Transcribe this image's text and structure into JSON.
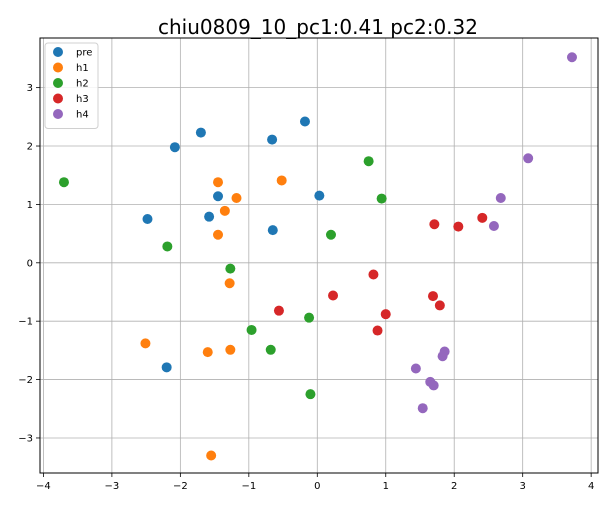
{
  "chart_data": {
    "type": "scatter",
    "title": "chiu0809_10_pc1:0.41 pc2:0.32",
    "xlabel": "",
    "ylabel": "",
    "xlim": [
      -4.05,
      4.1
    ],
    "ylim": [
      -3.6,
      3.85
    ],
    "x_ticks": [
      -4,
      -3,
      -2,
      -1,
      0,
      1,
      2,
      3,
      4
    ],
    "y_ticks": [
      -3,
      -2,
      -1,
      0,
      1,
      2,
      3
    ],
    "x_tick_labels": [
      "−4",
      "−3",
      "−2",
      "−1",
      "0",
      "1",
      "2",
      "3",
      "4"
    ],
    "y_tick_labels": [
      "−3",
      "−2",
      "−1",
      "0",
      "1",
      "2",
      "3"
    ],
    "grid": true,
    "legend_position": "upper-left",
    "series": [
      {
        "name": "pre",
        "color": "#1f77b4",
        "points": [
          [
            -2.48,
            0.75
          ],
          [
            -2.08,
            1.98
          ],
          [
            -1.7,
            2.23
          ],
          [
            -1.58,
            0.79
          ],
          [
            -1.45,
            1.14
          ],
          [
            -2.2,
            -1.79
          ],
          [
            -0.66,
            2.11
          ],
          [
            -0.65,
            0.56
          ],
          [
            -0.18,
            2.42
          ],
          [
            0.03,
            1.15
          ]
        ]
      },
      {
        "name": "h1",
        "color": "#ff7f0e",
        "points": [
          [
            -1.45,
            1.38
          ],
          [
            -1.35,
            0.89
          ],
          [
            -1.18,
            1.11
          ],
          [
            -1.45,
            0.48
          ],
          [
            -1.28,
            -0.35
          ],
          [
            -0.52,
            1.41
          ],
          [
            -2.51,
            -1.38
          ],
          [
            -1.6,
            -1.53
          ],
          [
            -1.27,
            -1.49
          ],
          [
            -1.55,
            -3.3
          ]
        ]
      },
      {
        "name": "h2",
        "color": "#2ca02c",
        "points": [
          [
            -3.7,
            1.38
          ],
          [
            -2.19,
            0.28
          ],
          [
            -1.27,
            -0.1
          ],
          [
            -0.96,
            -1.15
          ],
          [
            -0.68,
            -1.49
          ],
          [
            -0.12,
            -0.94
          ],
          [
            0.2,
            0.48
          ],
          [
            -0.1,
            -2.25
          ],
          [
            0.75,
            1.74
          ],
          [
            0.94,
            1.1
          ]
        ]
      },
      {
        "name": "h3",
        "color": "#d62728",
        "points": [
          [
            -0.56,
            -0.82
          ],
          [
            0.23,
            -0.56
          ],
          [
            0.82,
            -0.2
          ],
          [
            0.88,
            -1.16
          ],
          [
            1.0,
            -0.88
          ],
          [
            1.69,
            -0.57
          ],
          [
            1.71,
            0.66
          ],
          [
            1.79,
            -0.73
          ],
          [
            2.06,
            0.62
          ],
          [
            2.41,
            0.77
          ]
        ]
      },
      {
        "name": "h4",
        "color": "#9467bd",
        "points": [
          [
            1.44,
            -1.81
          ],
          [
            1.54,
            -2.49
          ],
          [
            1.65,
            -2.04
          ],
          [
            1.7,
            -2.1
          ],
          [
            1.83,
            -1.6
          ],
          [
            1.86,
            -1.52
          ],
          [
            2.58,
            0.63
          ],
          [
            2.68,
            1.11
          ],
          [
            3.08,
            1.79
          ],
          [
            3.72,
            3.52
          ]
        ]
      }
    ]
  }
}
